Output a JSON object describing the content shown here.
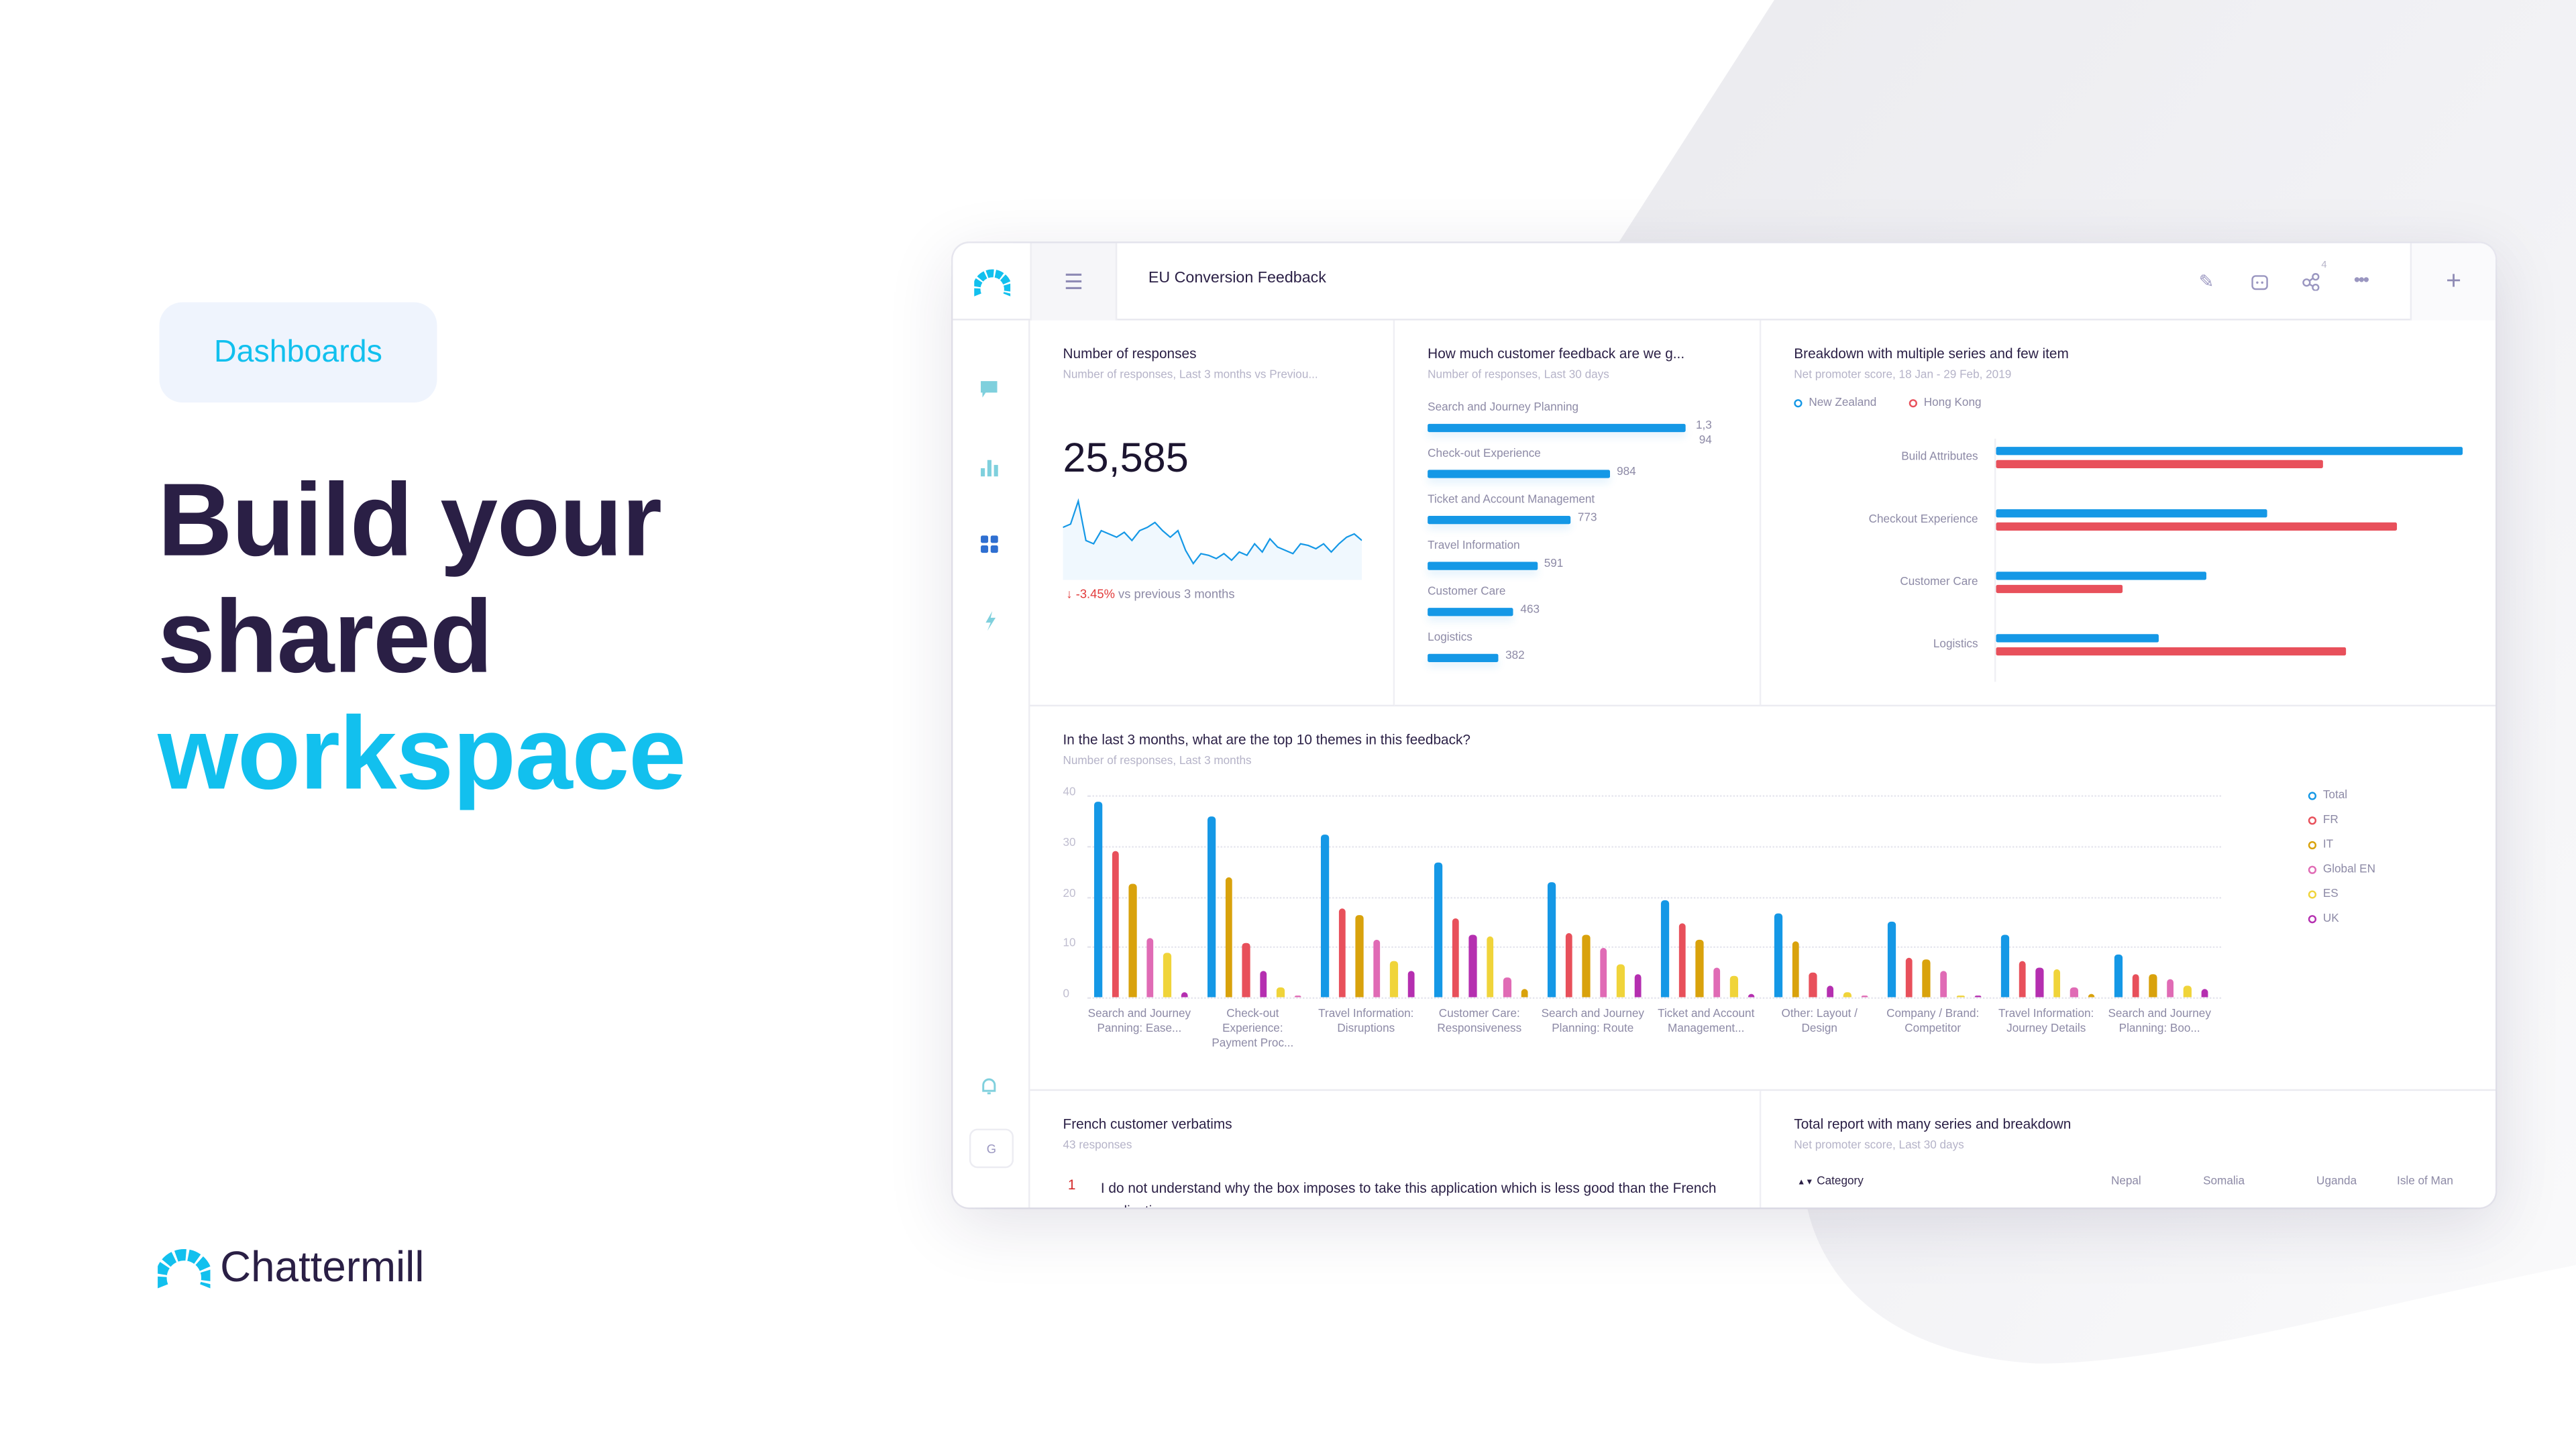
{
  "hero": {
    "badge": "Dashboards",
    "line1": "Build your",
    "line2": "shared",
    "line3": "workspace"
  },
  "brand": {
    "name": "Chattermill"
  },
  "colors": {
    "accent": "#12c0ee",
    "ink": "#2a1f45",
    "blue": "#1598e6",
    "red": "#e8505b"
  },
  "app": {
    "title": "EU Conversion Feedback",
    "share_count": "4",
    "header_icons": [
      "edit-icon",
      "calendar-icon",
      "share-icon",
      "more-icon",
      "plus-icon"
    ],
    "sidebar_icons": [
      "feedback-icon",
      "analytics-icon",
      "dashboards-icon",
      "automation-icon",
      "bell-icon"
    ],
    "user_initial": "G"
  },
  "responses": {
    "title": "Number of responses",
    "subtitle": "Number of responses, Last 3 months vs Previou...",
    "value": "25,585",
    "delta": "-3.45%",
    "delta_text": "vs previous 3 months",
    "sparkline": [
      22,
      24,
      38,
      14,
      12,
      20,
      18,
      16,
      19,
      14,
      20,
      22,
      25,
      20,
      16,
      20,
      8,
      0,
      6,
      5,
      3,
      6,
      2,
      7,
      5,
      12,
      7,
      15,
      10,
      8,
      6,
      12,
      11,
      9,
      12,
      7,
      12,
      16,
      18,
      14
    ]
  },
  "feedback": {
    "title": "How much customer feedback are we g...",
    "subtitle": "Number of responses, Last 30 days",
    "items": [
      {
        "label": "Search and Journey Planning",
        "value": 1394,
        "display": "1,394"
      },
      {
        "label": "Check-out Experience",
        "value": 984,
        "display": "984"
      },
      {
        "label": "Ticket and Account Management",
        "value": 773,
        "display": "773"
      },
      {
        "label": "Travel Information",
        "value": 591,
        "display": "591"
      },
      {
        "label": "Customer Care",
        "value": 463,
        "display": "463"
      },
      {
        "label": "Logistics",
        "value": 382,
        "display": "382"
      }
    ]
  },
  "breakdown": {
    "title": "Breakdown with multiple series and few item",
    "subtitle": "Net promoter score, 18 Jan - 29 Feb, 2019",
    "series": [
      {
        "name": "New Zealand",
        "color": "#1598e6"
      },
      {
        "name": "Hong Kong",
        "color": "#e8505b"
      }
    ],
    "categories": [
      "Build Attributes",
      "Checkout Experience",
      "Customer Care",
      "Logistics"
    ],
    "values": [
      [
        100,
        70
      ],
      [
        58,
        86
      ],
      [
        45,
        27
      ],
      [
        35,
        75
      ]
    ]
  },
  "chart_data": {
    "type": "bar",
    "title": "In the last 3 months, what are the top 10 themes in this feedback?",
    "subtitle": "Number of responses, Last 3 months",
    "ylim": [
      0,
      40
    ],
    "yticks": [
      "0",
      "10",
      "20",
      "30",
      "40"
    ],
    "grid": true,
    "legend_placement": "right",
    "categories": [
      "Search and Journey Panning: Ease...",
      "Check-out Experience: Payment Proc...",
      "Travel Information: Disruptions",
      "Customer Care: Responsiveness",
      "Search and Journey Planning: Route",
      "Ticket and Account Management...",
      "Other: Layout / Design",
      "Company / Brand: Competitor",
      "Travel Information: Journey Details",
      "Search and Journey Planning: Boo..."
    ],
    "series": [
      {
        "name": "Total",
        "color": "#1598e6",
        "values": [
          38.7,
          35.9,
          32.3,
          26.6,
          22.9,
          19.3,
          16.7,
          14.8,
          12.3,
          8.3
        ]
      },
      {
        "name": "FR",
        "color": "#e8505b",
        "values": [
          28.9,
          10.7,
          17.4,
          15.5,
          12.7,
          14.5,
          5.0,
          7.9,
          7.2,
          4.5
        ]
      },
      {
        "name": "IT",
        "color": "#d9a20c",
        "values": [
          22.6,
          23.7,
          16.3,
          1.6,
          12.5,
          11.3,
          11.1,
          7.5,
          0.7,
          4.5
        ]
      },
      {
        "name": "Global EN",
        "color": "#e06bb5",
        "values": [
          11.7,
          0.2,
          11.3,
          3.9,
          9.6,
          5.8,
          0.2,
          5.2,
          1.8,
          3.5
        ]
      },
      {
        "name": "ES",
        "color": "#f0d43a",
        "values": [
          8.8,
          2.0,
          7.1,
          11.9,
          6.6,
          4.3,
          0.9,
          0.2,
          5.6,
          2.4
        ]
      },
      {
        "name": "UK",
        "color": "#b52fb0",
        "values": [
          1.1,
          5.2,
          5.2,
          12.5,
          4.7,
          0.5,
          2.4,
          0.2,
          5.7,
          1.5
        ]
      }
    ]
  },
  "verbatims": {
    "title": "French customer verbatims",
    "subtitle": "43 responses",
    "items": [
      {
        "n": "1",
        "text": "I do not understand why the box imposes to take this application which is less good than the French application"
      }
    ]
  },
  "total_report": {
    "title": "Total report with many series and breakdown",
    "subtitle": "Net promoter score, Last 30 days",
    "columns": [
      "Category",
      "Nepal",
      "Somalia",
      "Uganda",
      "Isle of Man"
    ]
  }
}
